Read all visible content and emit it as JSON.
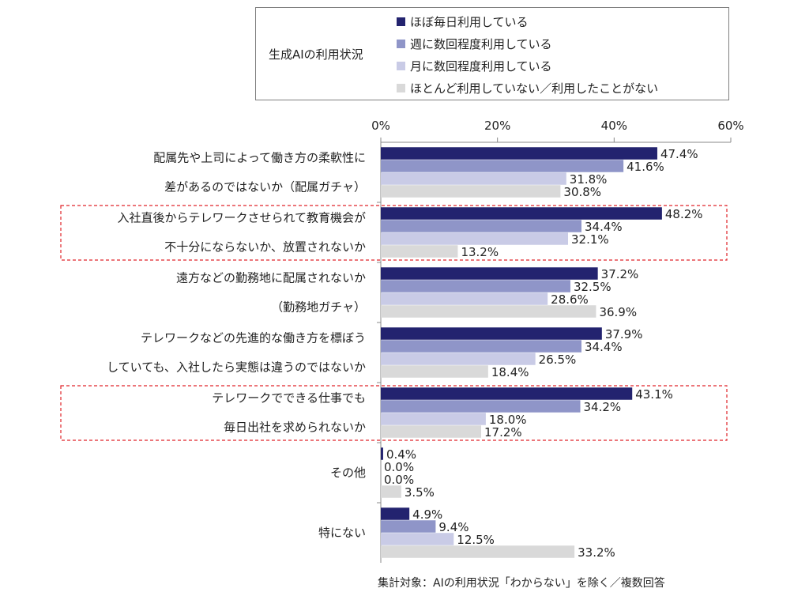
{
  "legend": {
    "title": "生成AIの利用状況",
    "items": [
      {
        "label": "ほぼ毎日利用している",
        "color": "#23236f"
      },
      {
        "label": "週に数回程度利用している",
        "color": "#8f95c8"
      },
      {
        "label": "月に数回程度利用している",
        "color": "#c9cbe6"
      },
      {
        "label": "ほとんど利用していない／利用したことがない",
        "color": "#d9d9d9"
      }
    ]
  },
  "footnote": "集計対象：AIの利用状況「わからない」を除く／複数回答",
  "chart_data": {
    "type": "bar",
    "orientation": "horizontal",
    "xlim": [
      0,
      60
    ],
    "ticks": [
      "0%",
      "20%",
      "40%",
      "60%"
    ],
    "tick_values": [
      0,
      20,
      40,
      60
    ],
    "categories": [
      [
        "配属先や上司によって働き方の柔軟性に",
        "差があるのではないか（配属ガチャ）"
      ],
      [
        "入社直後からテレワークさせられて教育機会が",
        "不十分にならないか、放置されないか"
      ],
      [
        "遠方などの勤務地に配属されないか",
        "（勤務地ガチャ）"
      ],
      [
        "テレワークなどの先進的な働き方を標ぼう",
        "していても、入社したら実態は違うのではないか"
      ],
      [
        "テレワークでできる仕事でも",
        "毎日出社を求められないか"
      ],
      [
        "その他"
      ],
      [
        "特にない"
      ]
    ],
    "highlighted": [
      1,
      4
    ],
    "highlight_color": "#e0242a",
    "series": [
      {
        "name": "ほぼ毎日利用している",
        "values": [
          47.4,
          48.2,
          37.2,
          37.9,
          43.1,
          0.4,
          4.9
        ],
        "labels": [
          "47.4%",
          "48.2%",
          "37.2%",
          "37.9%",
          "43.1%",
          "0.4%",
          "4.9%"
        ]
      },
      {
        "name": "週に数回程度利用している",
        "values": [
          41.6,
          34.4,
          32.5,
          34.4,
          34.2,
          0.0,
          9.4
        ],
        "labels": [
          "41.6%",
          "34.4%",
          "32.5%",
          "34.4%",
          "34.2%",
          "0.0%",
          "9.4%"
        ]
      },
      {
        "name": "月に数回程度利用している",
        "values": [
          31.8,
          32.1,
          28.6,
          26.5,
          18.0,
          0.0,
          12.5
        ],
        "labels": [
          "31.8%",
          "32.1%",
          "28.6%",
          "26.5%",
          "18.0%",
          "0.0%",
          "12.5%"
        ]
      },
      {
        "name": "ほとんど利用していない／利用したことがない",
        "values": [
          30.8,
          13.2,
          36.9,
          18.4,
          17.2,
          3.5,
          33.2
        ],
        "labels": [
          "30.8%",
          "13.2%",
          "36.9%",
          "18.4%",
          "17.2%",
          "3.5%",
          "33.2%"
        ]
      }
    ]
  }
}
